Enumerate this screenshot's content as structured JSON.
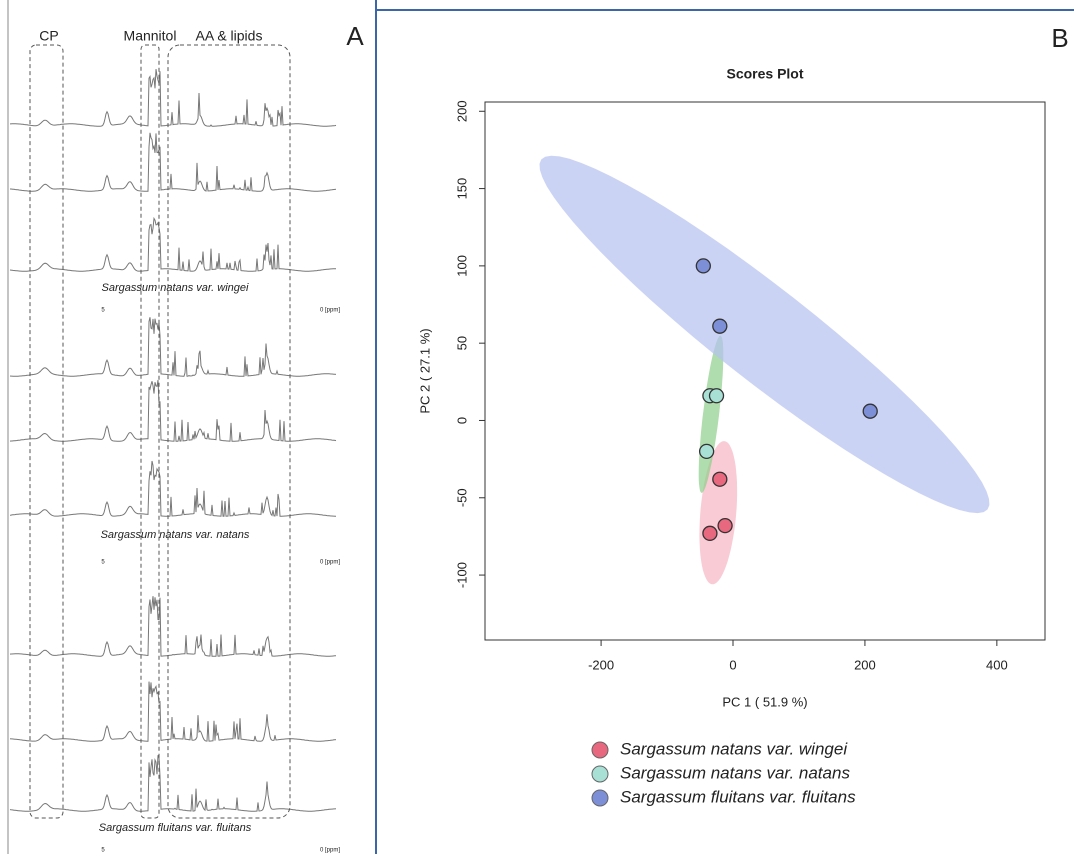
{
  "panel_a": {
    "letter": "A",
    "regions": [
      "CP",
      "Mannitol",
      "AA & lipids"
    ],
    "groups": [
      {
        "label": "Sargassum natans var. wingei",
        "ticks": [
          "5",
          "0 [ppm]"
        ]
      },
      {
        "label": "Sargassum natans var. natans",
        "ticks": [
          "5",
          "0 [ppm]"
        ]
      },
      {
        "label": "Sargassum fluitans var. fluitans",
        "ticks": [
          "5",
          "0 [ppm]"
        ]
      }
    ]
  },
  "chart_data": {
    "type": "scatter",
    "panel": "B",
    "title": "Scores Plot",
    "xlabel": "PC 1 ( 51.9 %)",
    "ylabel": "PC 2 ( 27.1 %)",
    "xlim": [
      -376,
      473
    ],
    "ylim": [
      -142,
      206
    ],
    "xticks": [
      -200,
      0,
      200,
      400
    ],
    "yticks": [
      -100,
      -50,
      0,
      50,
      100,
      150,
      200
    ],
    "confidence_ellipses": true,
    "series": [
      {
        "name": "Sargassum natans var. wingei",
        "color": "#e8687f",
        "ellipse_color": "#f7b5c3",
        "x": [
          -20,
          -35,
          -12
        ],
        "y": [
          -38,
          -73,
          -68
        ]
      },
      {
        "name": "Sargassum natans var. natans",
        "color": "#a8e0d6",
        "ellipse_color": "#8fcf8a",
        "x": [
          -35,
          -25,
          -40
        ],
        "y": [
          16,
          16,
          -20
        ]
      },
      {
        "name": "Sargassum fluitans var. fluitans",
        "color": "#7d8fd6",
        "ellipse_color": "#b5c0ef",
        "x": [
          -45,
          -20,
          208
        ],
        "y": [
          100,
          61,
          6
        ]
      }
    ]
  }
}
